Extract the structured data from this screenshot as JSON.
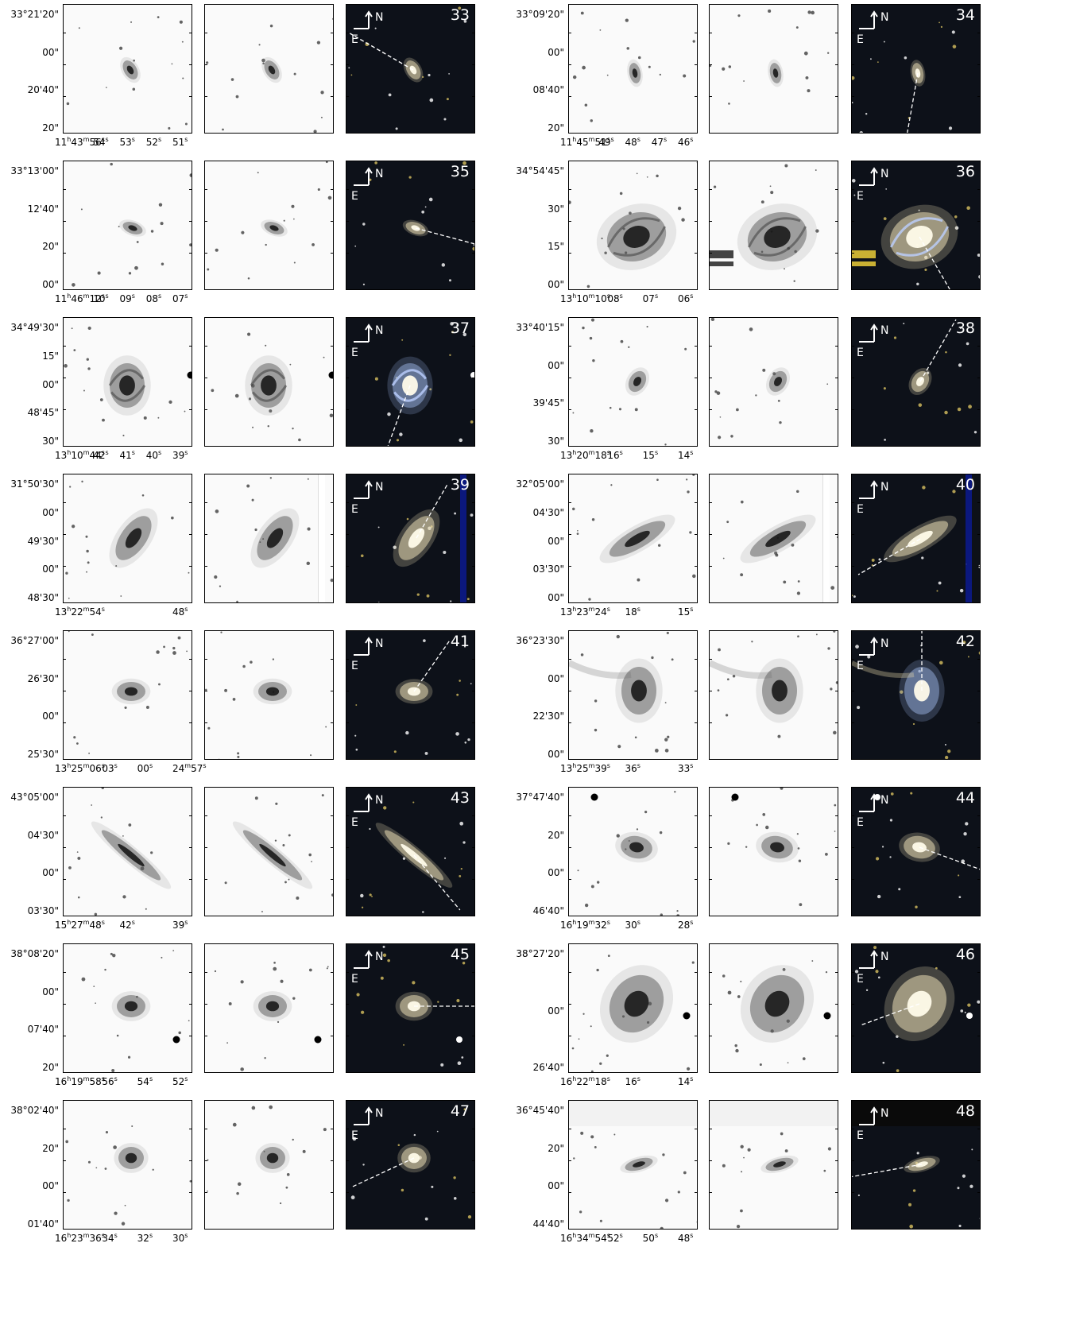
{
  "colors": {
    "panel_bg": "#fafafa",
    "color_bg": "#0d1119",
    "compass": "#ffffff",
    "galaxy_warm": "#f3e9c6",
    "galaxy_blue": "#9db8ea"
  },
  "compass": {
    "north": "N",
    "east": "E"
  },
  "icons": [
    "north-arrow-icon",
    "galaxy-icon",
    "slit-line-icon"
  ],
  "panels": [
    {
      "id": "33",
      "y": [
        "33°21'20\"",
        "00\"",
        "20'40\"",
        "20\""
      ],
      "x": [
        [
          "11",
          "h",
          "43",
          "m",
          "56",
          "s"
        ],
        [
          "54",
          "s"
        ],
        [
          "53",
          "s"
        ],
        [
          "52",
          "s"
        ],
        [
          "51",
          "s"
        ]
      ]
    },
    {
      "id": "34",
      "y": [
        "33°09'20\"",
        "00\"",
        "08'40\"",
        "20\""
      ],
      "x": [
        [
          "11",
          "h",
          "45",
          "m",
          "51",
          "s"
        ],
        [
          "49",
          "s"
        ],
        [
          "48",
          "s"
        ],
        [
          "47",
          "s"
        ],
        [
          "46",
          "s"
        ]
      ]
    },
    {
      "id": "35",
      "y": [
        "33°13'00\"",
        "12'40\"",
        "20\"",
        "00\""
      ],
      "x": [
        [
          "11",
          "h",
          "46",
          "m",
          "12",
          "s"
        ],
        [
          "10",
          "s"
        ],
        [
          "09",
          "s"
        ],
        [
          "08",
          "s"
        ],
        [
          "07",
          "s"
        ]
      ]
    },
    {
      "id": "36",
      "y": [
        "34°54'45\"",
        "30\"",
        "15\"",
        "00\""
      ],
      "x": [
        [
          "13",
          "h",
          "10",
          "m",
          "10",
          "s"
        ],
        [
          "08",
          "s"
        ],
        [
          "07",
          "s"
        ],
        [
          "06",
          "s"
        ]
      ]
    },
    {
      "id": "37",
      "y": [
        "34°49'30\"",
        "15\"",
        "00\"",
        "48'45\"",
        "30\""
      ],
      "x": [
        [
          "13",
          "h",
          "10",
          "m",
          "44",
          "s"
        ],
        [
          "42",
          "s"
        ],
        [
          "41",
          "s"
        ],
        [
          "40",
          "s"
        ],
        [
          "39",
          "s"
        ]
      ]
    },
    {
      "id": "38",
      "y": [
        "33°40'15\"",
        "00\"",
        "39'45\"",
        "30\""
      ],
      "x": [
        [
          "13",
          "h",
          "20",
          "m",
          "18",
          "s"
        ],
        [
          "16",
          "s"
        ],
        [
          "15",
          "s"
        ],
        [
          "14",
          "s"
        ]
      ]
    },
    {
      "id": "39",
      "y": [
        "31°50'30\"",
        "00\"",
        "49'30\"",
        "00\"",
        "48'30\""
      ],
      "x": [
        [
          "13",
          "h",
          "22",
          "m",
          "54",
          "s"
        ],
        [
          "48",
          "s"
        ]
      ]
    },
    {
      "id": "40",
      "y": [
        "32°05'00\"",
        "04'30\"",
        "00\"",
        "03'30\"",
        "00\""
      ],
      "x": [
        [
          "13",
          "h",
          "23",
          "m",
          "24",
          "s"
        ],
        [
          "18",
          "s"
        ],
        [
          "15",
          "s"
        ]
      ]
    },
    {
      "id": "41",
      "y": [
        "36°27'00\"",
        "26'30\"",
        "00\"",
        "25'30\""
      ],
      "x": [
        [
          "13",
          "h",
          "25",
          "m",
          "06",
          "s"
        ],
        [
          "03",
          "s"
        ],
        [
          "00",
          "s"
        ],
        [
          "24",
          "m",
          "57",
          "s"
        ]
      ]
    },
    {
      "id": "42",
      "y": [
        "36°23'30\"",
        "00\"",
        "22'30\"",
        "00\""
      ],
      "x": [
        [
          "13",
          "h",
          "25",
          "m",
          "39",
          "s"
        ],
        [
          "36",
          "s"
        ],
        [
          "33",
          "s"
        ]
      ]
    },
    {
      "id": "43",
      "y": [
        "43°05'00\"",
        "04'30\"",
        "00\"",
        "03'30\""
      ],
      "x": [
        [
          "15",
          "h",
          "27",
          "m",
          "48",
          "s"
        ],
        [
          "42",
          "s"
        ],
        [
          "39",
          "s"
        ]
      ]
    },
    {
      "id": "44",
      "y": [
        "37°47'40\"",
        "20\"",
        "00\"",
        "46'40\""
      ],
      "x": [
        [
          "16",
          "h",
          "19",
          "m",
          "32",
          "s"
        ],
        [
          "30",
          "s"
        ],
        [
          "28",
          "s"
        ]
      ]
    },
    {
      "id": "45",
      "y": [
        "38°08'20\"",
        "00\"",
        "07'40\"",
        "20\""
      ],
      "x": [
        [
          "16",
          "h",
          "19",
          "m",
          "58",
          "s"
        ],
        [
          "56",
          "s"
        ],
        [
          "54",
          "s"
        ],
        [
          "52",
          "s"
        ]
      ]
    },
    {
      "id": "46",
      "y": [
        "38°27'20\"",
        "00\"",
        "26'40\""
      ],
      "x": [
        [
          "16",
          "h",
          "22",
          "m",
          "18",
          "s"
        ],
        [
          "16",
          "s"
        ],
        [
          "14",
          "s"
        ]
      ]
    },
    {
      "id": "47",
      "y": [
        "38°02'40\"",
        "20\"",
        "00\"",
        "01'40\""
      ],
      "x": [
        [
          "16",
          "h",
          "23",
          "m",
          "36",
          "s"
        ],
        [
          "34",
          "s"
        ],
        [
          "32",
          "s"
        ],
        [
          "30",
          "s"
        ]
      ]
    },
    {
      "id": "48",
      "y": [
        "36°45'40\"",
        "20\"",
        "00\"",
        "44'40\""
      ],
      "x": [
        [
          "16",
          "h",
          "34",
          "m",
          "54",
          "s"
        ],
        [
          "52",
          "s"
        ],
        [
          "50",
          "s"
        ],
        [
          "48",
          "s"
        ]
      ]
    }
  ]
}
